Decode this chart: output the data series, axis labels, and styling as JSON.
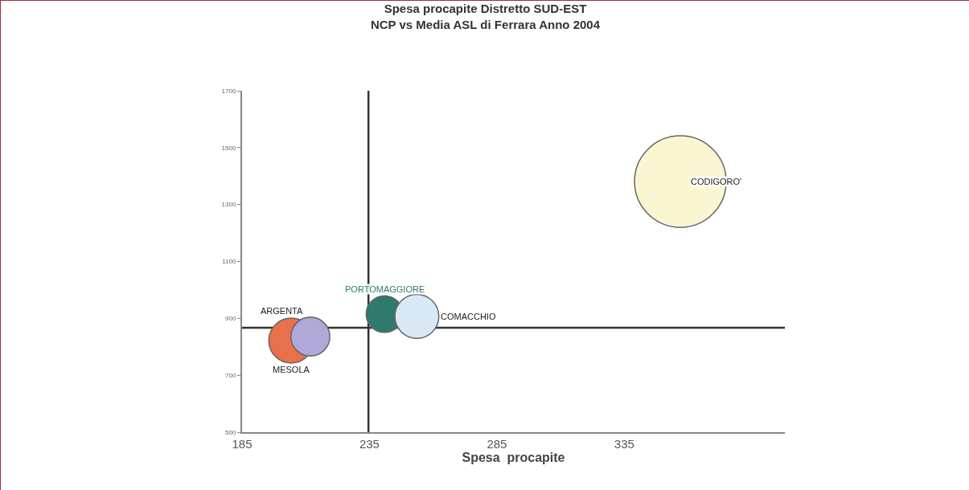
{
  "chart_data": {
    "type": "bubble",
    "title": "Spesa procapite Distretto SUD-EST\nNCP vs Media ASL di Ferrara Anno 2004",
    "xlabel": "Spesa  procapite",
    "series": [
      {
        "name": "MESOLA",
        "color": "#e8704a",
        "x": [
          204.3
        ],
        "values": [
          822
        ],
        "sizes": [
          0.24
        ]
      },
      {
        "name": "ARGENTA",
        "color": "#b0a8d8",
        "x": [
          211.8
        ],
        "values": [
          836
        ],
        "sizes": [
          0.18
        ]
      },
      {
        "name": "PORTOMAGGIORE",
        "color": "#2e7a6c",
        "x": [
          240.9
        ],
        "values": [
          915
        ],
        "sizes": [
          0.16
        ]
      },
      {
        "name": "COMACCHIO",
        "color": "#d8e8f4",
        "x": [
          253.6
        ],
        "values": [
          907
        ],
        "sizes": [
          0.23
        ]
      },
      {
        "name": "CODIGORO'",
        "color": "#fbf6d2",
        "x": [
          357
        ],
        "values": [
          1381
        ],
        "sizes": [
          1
        ]
      }
    ],
    "xlim": [
      185,
      398
    ],
    "xticks": [
      185,
      235,
      285,
      335
    ],
    "ylim": [
      500,
      1700
    ],
    "yticks": [
      500,
      700,
      900,
      1100,
      1300,
      1500,
      1700
    ],
    "ref_lines": [
      {
        "axis": "x",
        "value": 234.6,
        "label": null,
        "color": "#333333"
      },
      {
        "axis": "y",
        "value": 867,
        "label": null,
        "color": "#333333"
      }
    ],
    "grid": false,
    "legend": false
  }
}
